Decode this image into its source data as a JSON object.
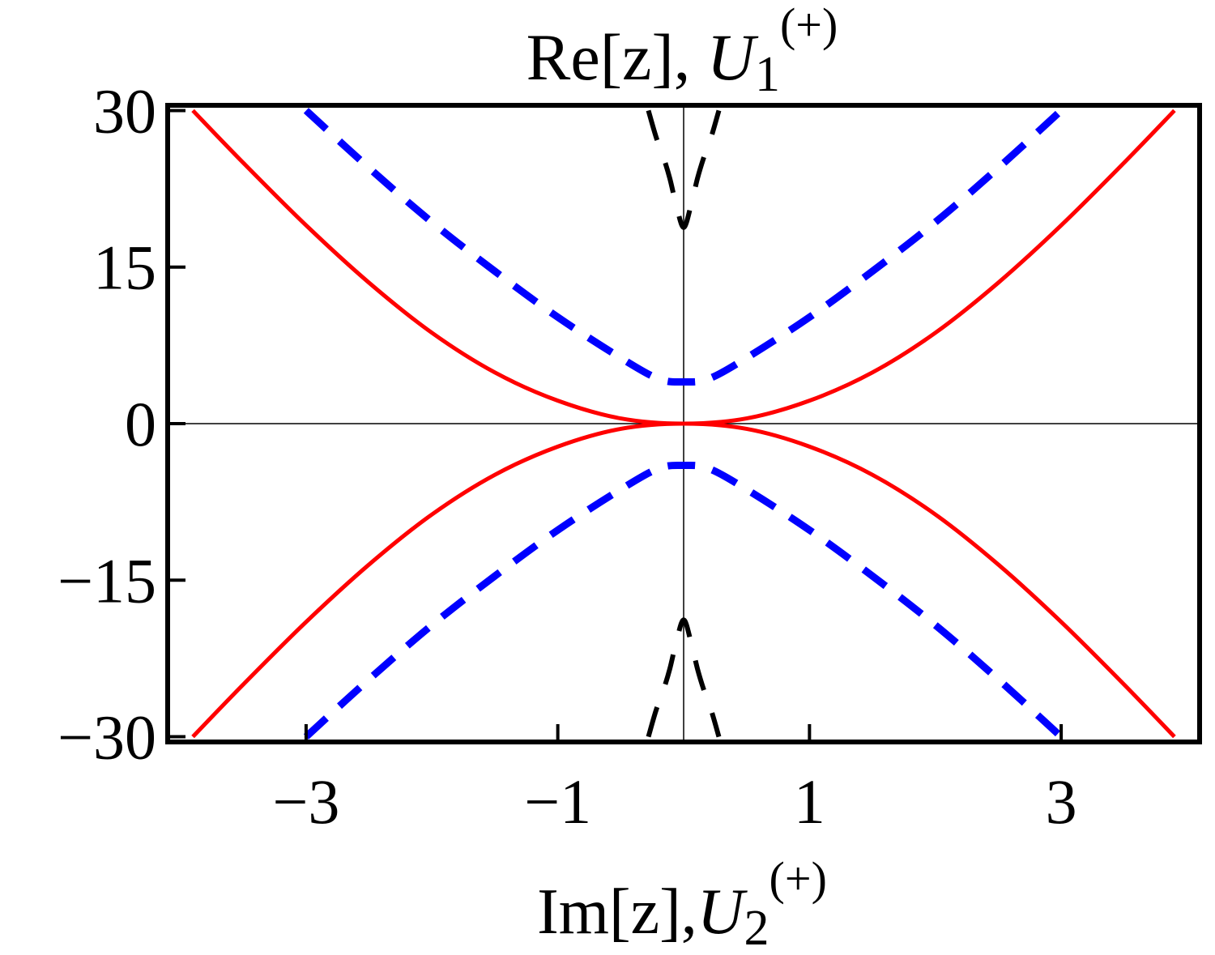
{
  "chart_data": {
    "type": "line",
    "title": {
      "prefix": "Re[z], ",
      "var": "U",
      "sub": "1",
      "sup": "(+)"
    },
    "xlabel": {
      "prefix": "Im[z],",
      "var": "U",
      "sub": "2",
      "sup": "(+)"
    },
    "xlim": [
      -4.1,
      4.1
    ],
    "ylim": [
      -30.5,
      30.5
    ],
    "xticks": [
      -3,
      -1,
      1,
      3
    ],
    "xtick_labels": [
      "−3",
      "−1",
      "1",
      "3"
    ],
    "yticks": [
      30,
      15,
      0,
      -15,
      -30
    ],
    "ytick_labels": [
      "30",
      "15",
      "0",
      "−15",
      "−30"
    ],
    "colors": {
      "red": "#ff0000",
      "blue": "#0000ff",
      "black": "#000000"
    },
    "series": [
      {
        "style": "solid",
        "color": "red",
        "x": [
          -3.9,
          -3.5,
          -3.0,
          -2.5,
          -2.0,
          -1.5,
          -1.0,
          -0.5,
          0,
          0.5,
          1.0,
          1.5,
          2.0,
          2.5,
          3.0,
          3.5,
          3.9
        ],
        "y": [
          30,
          25,
          19,
          13.5,
          8.7,
          4.9,
          2.2,
          0.5,
          0,
          0.5,
          2.2,
          4.9,
          8.7,
          13.5,
          19,
          25,
          30
        ]
      },
      {
        "style": "solid",
        "color": "red",
        "x": [
          -3.9,
          -3.5,
          -3.0,
          -2.5,
          -2.0,
          -1.5,
          -1.0,
          -0.5,
          0,
          0.5,
          1.0,
          1.5,
          2.0,
          2.5,
          3.0,
          3.5,
          3.9
        ],
        "y": [
          -30,
          -25,
          -19,
          -13.5,
          -8.7,
          -4.9,
          -2.2,
          -0.5,
          0,
          -0.5,
          -2.2,
          -4.9,
          -8.7,
          -13.5,
          -19,
          -25,
          -30
        ]
      },
      {
        "style": "dashed",
        "color": "blue",
        "x": [
          -3.0,
          -2.5,
          -2.0,
          -1.5,
          -1.0,
          -0.5,
          -0.2,
          0,
          0.2,
          0.5,
          1.0,
          1.5,
          2.0,
          2.5,
          3.0
        ],
        "y": [
          30,
          24.5,
          19.3,
          14.6,
          10.2,
          6.3,
          4.3,
          4.0,
          4.3,
          6.3,
          10.2,
          14.6,
          19.3,
          24.5,
          30
        ]
      },
      {
        "style": "dashed",
        "color": "blue",
        "x": [
          -3.0,
          -2.5,
          -2.0,
          -1.5,
          -1.0,
          -0.5,
          -0.2,
          0,
          0.2,
          0.5,
          1.0,
          1.5,
          2.0,
          2.5,
          3.0
        ],
        "y": [
          -30,
          -24.5,
          -19.3,
          -14.6,
          -10.2,
          -6.3,
          -4.3,
          -4.0,
          -4.3,
          -6.3,
          -10.2,
          -14.6,
          -19.3,
          -24.5,
          -30
        ]
      },
      {
        "style": "dashed",
        "color": "black",
        "x": [
          -0.28,
          -0.22,
          -0.16,
          -0.11,
          -0.06,
          0,
          0.06,
          0.11,
          0.16,
          0.22,
          0.28
        ],
        "y": [
          30,
          27.5,
          25.5,
          23.5,
          21,
          18.8,
          21,
          23.5,
          25.5,
          27.5,
          30
        ]
      },
      {
        "style": "dashed",
        "color": "black",
        "x": [
          -0.28,
          -0.22,
          -0.16,
          -0.11,
          -0.06,
          0,
          0.06,
          0.11,
          0.16,
          0.22,
          0.28
        ],
        "y": [
          -30,
          -27.5,
          -25.5,
          -23.5,
          -21,
          -18.8,
          -21,
          -23.5,
          -25.5,
          -27.5,
          -30
        ]
      }
    ],
    "grid": false,
    "legend": "none"
  }
}
